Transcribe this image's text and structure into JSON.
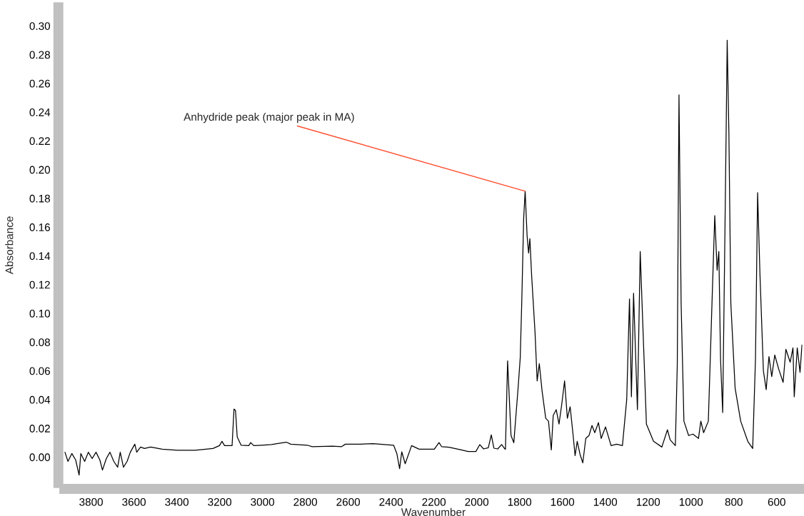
{
  "chart_data": {
    "type": "line",
    "xlabel": "Wavenumber",
    "ylabel": "Absorbance",
    "xlim": [
      3925,
      480
    ],
    "ylim": [
      -0.018,
      0.313
    ],
    "xticks": [
      3800,
      3600,
      3400,
      3200,
      3000,
      2800,
      2600,
      2400,
      2200,
      2000,
      1800,
      1600,
      1400,
      1200,
      1000,
      800,
      600
    ],
    "yticks": [
      {
        "value": 0,
        "label": "0.00"
      },
      {
        "value": 0.02,
        "label": "0.02"
      },
      {
        "value": 0.04,
        "label": "0.04"
      },
      {
        "value": 0.06,
        "label": "0.06"
      },
      {
        "value": 0.08,
        "label": "0.08"
      },
      {
        "value": 0.1,
        "label": "0.10"
      },
      {
        "value": 0.12,
        "label": "0.12"
      },
      {
        "value": 0.14,
        "label": "0.14"
      },
      {
        "value": 0.16,
        "label": "0.16"
      },
      {
        "value": 0.18,
        "label": "0.18"
      },
      {
        "value": 0.2,
        "label": "0.20"
      },
      {
        "value": 0.22,
        "label": "0.22"
      },
      {
        "value": 0.24,
        "label": "0.24"
      },
      {
        "value": 0.26,
        "label": "0.26"
      },
      {
        "value": 0.28,
        "label": "0.28"
      },
      {
        "value": 0.3,
        "label": "0.30"
      }
    ],
    "grid": false,
    "legend": false,
    "marker": "none",
    "line_style": "solid",
    "annotations": [
      {
        "text": "Anhydride peak (major peak in MA)",
        "x": 1774,
        "y": 0.185
      }
    ],
    "series": [
      {
        "color": "#000000",
        "x": [
          3922,
          3908,
          3890,
          3872,
          3856,
          3848,
          3830,
          3813,
          3795,
          3777,
          3759,
          3747,
          3729,
          3712,
          3694,
          3676,
          3664,
          3649,
          3632,
          3617,
          3596,
          3587,
          3569,
          3551,
          3522,
          3468,
          3397,
          3314,
          3231,
          3201,
          3189,
          3177,
          3142,
          3133,
          3126,
          3118,
          3100,
          3064,
          3055,
          3041,
          3005,
          2958,
          2922,
          2889,
          2868,
          2791,
          2768,
          2673,
          2631,
          2613,
          2542,
          2483,
          2388,
          2373,
          2360,
          2350,
          2334,
          2304,
          2269,
          2198,
          2176,
          2164,
          2130,
          2076,
          2040,
          2004,
          1986,
          1968,
          1946,
          1932,
          1920,
          1902,
          1884,
          1869,
          1866,
          1856,
          1840,
          1827,
          1807,
          1797,
          1790,
          1781,
          1774,
          1765,
          1758,
          1752,
          1744,
          1728,
          1718,
          1708,
          1695,
          1678,
          1665,
          1652,
          1643,
          1629,
          1616,
          1603,
          1590,
          1577,
          1564,
          1550,
          1541,
          1531,
          1518,
          1505,
          1491,
          1476,
          1462,
          1449,
          1432,
          1419,
          1399,
          1373,
          1347,
          1320,
          1300,
          1287,
          1278,
          1268,
          1250,
          1237,
          1225,
          1208,
          1175,
          1136,
          1110,
          1097,
          1073,
          1064,
          1056,
          1046,
          1033,
          1011,
          991,
          965,
          954,
          941,
          919,
          902,
          889,
          878,
          870,
          862,
          852,
          844,
          836,
          831,
          823,
          814,
          794,
          768,
          735,
          712,
          699,
          689,
          678,
          662,
          649,
          636,
          623,
          609,
          590,
          570,
          557,
          537,
          524,
          518,
          504,
          491,
          482
        ],
        "values": [
          0.0034,
          -0.003,
          0.0025,
          -0.002,
          -0.0125,
          0.0025,
          -0.003,
          0.0034,
          -0.001,
          0.0034,
          -0.002,
          -0.009,
          -0.001,
          0.0034,
          -0.003,
          -0.007,
          0.0034,
          -0.007,
          -0.003,
          0.0034,
          0.009,
          0.0034,
          0.007,
          0.006,
          0.007,
          0.0055,
          0.0048,
          0.0048,
          0.006,
          0.008,
          0.011,
          0.008,
          0.008,
          0.0334,
          0.0325,
          0.014,
          0.0083,
          0.008,
          0.0101,
          0.008,
          0.0083,
          0.0087,
          0.0096,
          0.0104,
          0.009,
          0.0083,
          0.0073,
          0.0076,
          0.0073,
          0.009,
          0.009,
          0.0094,
          0.0083,
          0.0025,
          -0.008,
          0.0037,
          -0.0046,
          0.008,
          0.0055,
          0.0055,
          0.0101,
          0.0073,
          0.0069,
          0.0051,
          0.0039,
          0.0039,
          0.0087,
          0.0057,
          0.0065,
          0.0155,
          0.0062,
          0.0057,
          0.0087,
          0.0057,
          0.0055,
          0.067,
          0.015,
          0.01,
          0.048,
          0.069,
          0.107,
          0.166,
          0.185,
          0.154,
          0.142,
          0.152,
          0.127,
          0.087,
          0.053,
          0.065,
          0.046,
          0.027,
          0.025,
          0.005,
          0.029,
          0.033,
          0.023,
          0.037,
          0.053,
          0.027,
          0.035,
          0.015,
          0.001,
          0.011,
          0.002,
          -0.004,
          0.013,
          0.015,
          0.022,
          0.017,
          0.024,
          0.013,
          0.021,
          0.008,
          0.009,
          0.008,
          0.04,
          0.11,
          0.042,
          0.114,
          0.033,
          0.143,
          0.093,
          0.023,
          0.011,
          0.007,
          0.019,
          0.012,
          0.008,
          0.064,
          0.252,
          0.107,
          0.025,
          0.015,
          0.016,
          0.013,
          0.025,
          0.017,
          0.025,
          0.107,
          0.168,
          0.13,
          0.143,
          0.068,
          0.031,
          0.127,
          0.225,
          0.29,
          0.225,
          0.107,
          0.048,
          0.025,
          0.011,
          0.006,
          0.068,
          0.184,
          0.127,
          0.06,
          0.047,
          0.07,
          0.056,
          0.071,
          0.061,
          0.052,
          0.075,
          0.066,
          0.076,
          0.042,
          0.076,
          0.059,
          0.078
        ]
      }
    ]
  }
}
